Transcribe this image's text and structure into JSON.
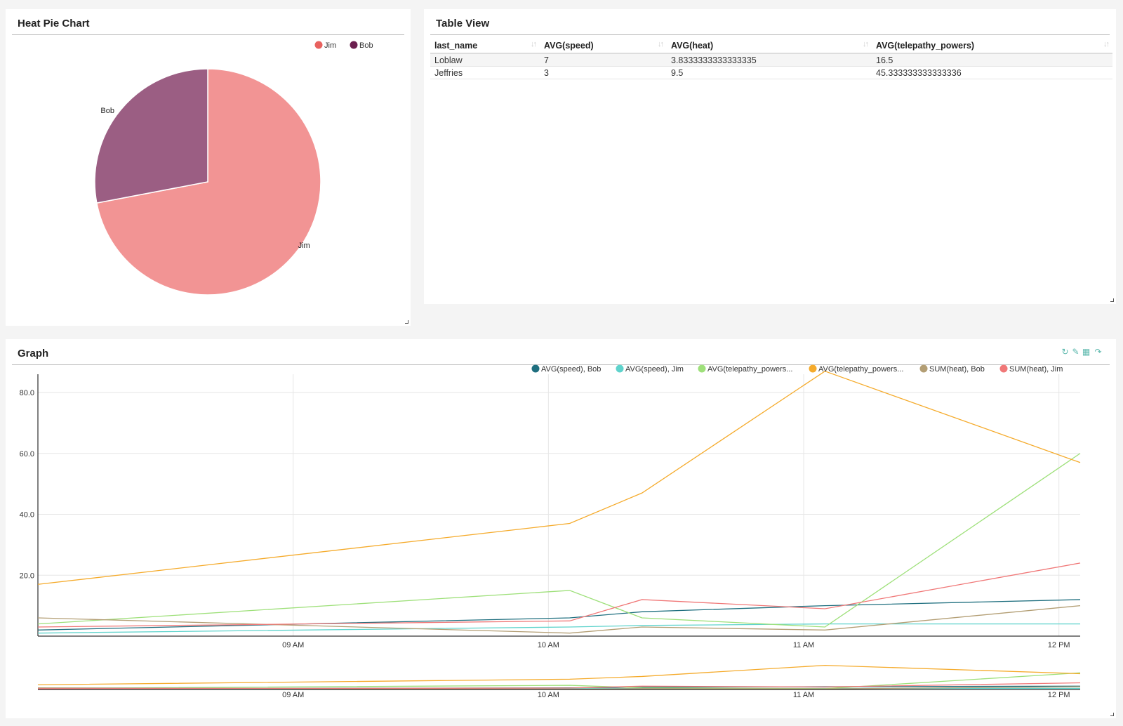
{
  "pie_panel": {
    "title": "Heat Pie Chart"
  },
  "table_panel": {
    "title": "Table View",
    "columns": [
      "last_name",
      "AVG(speed)",
      "AVG(heat)",
      "AVG(telepathy_powers)"
    ],
    "rows": [
      [
        "Loblaw",
        "7",
        "3.8333333333333335",
        "16.5"
      ],
      [
        "Jeffries",
        "3",
        "9.5",
        "45.333333333333336"
      ]
    ]
  },
  "graph_panel": {
    "title": "Graph",
    "tools": [
      "refresh-icon",
      "edit-icon",
      "table-icon",
      "share-icon"
    ],
    "legend": [
      "AVG(speed), Bob",
      "AVG(speed), Jim",
      "AVG(telepathy_powers...",
      "AVG(telepathy_powers...",
      "SUM(heat), Bob",
      "SUM(heat), Jim"
    ]
  },
  "chart_data": [
    {
      "type": "pie",
      "title": "Heat Pie Chart",
      "labels": [
        "Jim",
        "Bob"
      ],
      "values": [
        72,
        28
      ],
      "colors": [
        "#f29494",
        "#9b5e83"
      ],
      "legend_colors": [
        "#e8625f",
        "#6b1f4f"
      ],
      "legend": "top-right"
    },
    {
      "type": "line",
      "title": "Graph",
      "x": [
        "08:00",
        "10:05",
        "10:22",
        "11:05",
        "12:05"
      ],
      "x_ticks": [
        "09 AM",
        "10 AM",
        "11 AM",
        "12 PM"
      ],
      "y_ticks": [
        "20.0",
        "40.0",
        "60.0",
        "80.0"
      ],
      "ylim": [
        0,
        86
      ],
      "grid": true,
      "legend": "top-right",
      "series": [
        {
          "name": "AVG(speed), Bob",
          "color": "#1f6f7f",
          "values": [
            2,
            6,
            8,
            10,
            12
          ]
        },
        {
          "name": "AVG(speed), Jim",
          "color": "#5fd3cc",
          "values": [
            1,
            3,
            3.5,
            4,
            4
          ]
        },
        {
          "name": "AVG(telepathy_powers...",
          "color": "#9ee07a",
          "values": [
            4,
            15,
            6,
            3,
            60
          ]
        },
        {
          "name": "AVG(telepathy_powers...",
          "color": "#f5ab2c",
          "values": [
            17,
            37,
            47,
            87,
            57
          ]
        },
        {
          "name": "SUM(heat), Bob",
          "color": "#b39e74",
          "values": [
            6,
            1,
            3,
            2,
            10
          ]
        },
        {
          "name": "SUM(heat), Jim",
          "color": "#f07878",
          "values": [
            3,
            5,
            12,
            9,
            24
          ]
        }
      ]
    }
  ]
}
